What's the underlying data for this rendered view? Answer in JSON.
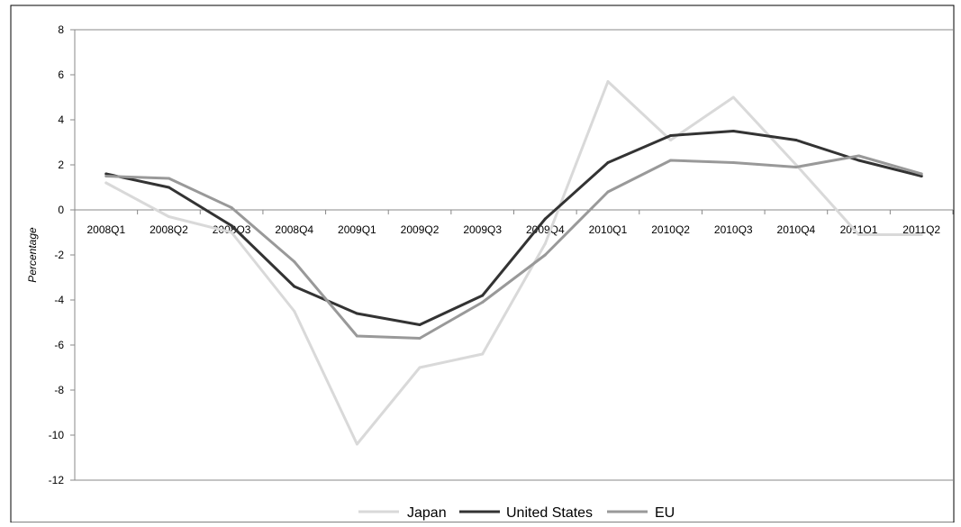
{
  "chart_data": {
    "type": "line",
    "categories": [
      "2008Q1",
      "2008Q2",
      "2008Q3",
      "2008Q4",
      "2009Q1",
      "2009Q2",
      "2009Q3",
      "2009Q4",
      "2010Q1",
      "2010Q2",
      "2010Q3",
      "2010Q4",
      "2011Q1",
      "2011Q2"
    ],
    "ylabel": "Percentage",
    "ylim": [
      -12,
      8
    ],
    "yticks": [
      8,
      6,
      4,
      2,
      0,
      -2,
      -4,
      -6,
      -8,
      -10,
      -12
    ],
    "grid": false,
    "legend_position": "bottom",
    "series": [
      {
        "name": "Japan",
        "color": "#d9d9d9",
        "values": [
          1.2,
          -0.3,
          -1.0,
          -4.5,
          -10.4,
          -7.0,
          -6.4,
          -1.5,
          5.7,
          3.1,
          5.0,
          2.0,
          -1.1,
          -1.1
        ]
      },
      {
        "name": "United States",
        "color": "#333333",
        "values": [
          1.6,
          1.0,
          -0.7,
          -3.4,
          -4.6,
          -5.1,
          -3.8,
          -0.4,
          2.1,
          3.3,
          3.5,
          3.1,
          2.2,
          1.5
        ]
      },
      {
        "name": "EU",
        "color": "#999999",
        "values": [
          1.5,
          1.4,
          0.1,
          -2.3,
          -5.6,
          -5.7,
          -4.1,
          -2.0,
          0.8,
          2.2,
          2.1,
          1.9,
          2.4,
          1.6
        ]
      }
    ]
  }
}
